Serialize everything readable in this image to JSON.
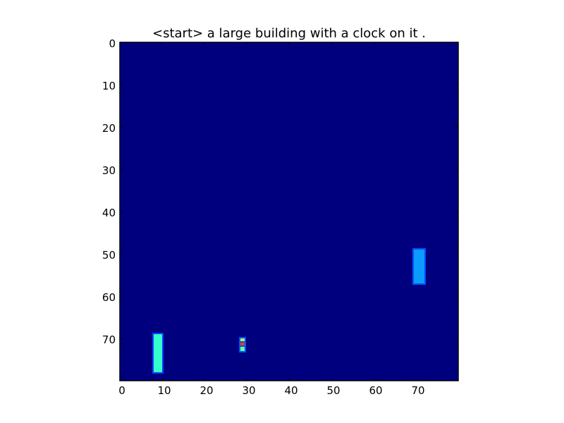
{
  "chart_data": {
    "type": "heatmap",
    "title": "<start> a large building with a clock on it .",
    "xlabel": "",
    "ylabel": "",
    "xlim": [
      0,
      80
    ],
    "ylim": [
      80,
      0
    ],
    "x_ticks": [
      0,
      10,
      20,
      30,
      40,
      50,
      60,
      70
    ],
    "y_ticks": [
      0,
      10,
      20,
      30,
      40,
      50,
      60,
      70
    ],
    "grid": false,
    "colormap": "jet",
    "background_value": 0.0,
    "background_color": "#00007f",
    "hotspots": [
      {
        "x0": 8,
        "x1": 10,
        "y0": 69,
        "y1": 78,
        "value": 0.45,
        "color": "#33ffcc",
        "edge_color": "#0a40ff"
      },
      {
        "x0": 69.5,
        "x1": 72,
        "y0": 49,
        "y1": 57,
        "value": 0.3,
        "color": "#0a9cff",
        "edge_color": "#0050ff"
      },
      {
        "x0": 28.5,
        "x1": 29.5,
        "y0": 70,
        "y1": 71,
        "value": 0.7,
        "color": "#b2ff4c",
        "edge_color": "#0050ff"
      },
      {
        "x0": 28.5,
        "x1": 29.5,
        "y0": 71,
        "y1": 72,
        "value": 0.95,
        "color": "#ff3a00",
        "edge_color": "#0050ff"
      },
      {
        "x0": 28.5,
        "x1": 29.5,
        "y0": 72,
        "y1": 73,
        "value": 0.6,
        "color": "#66ff8f",
        "edge_color": "#0050ff"
      }
    ]
  }
}
